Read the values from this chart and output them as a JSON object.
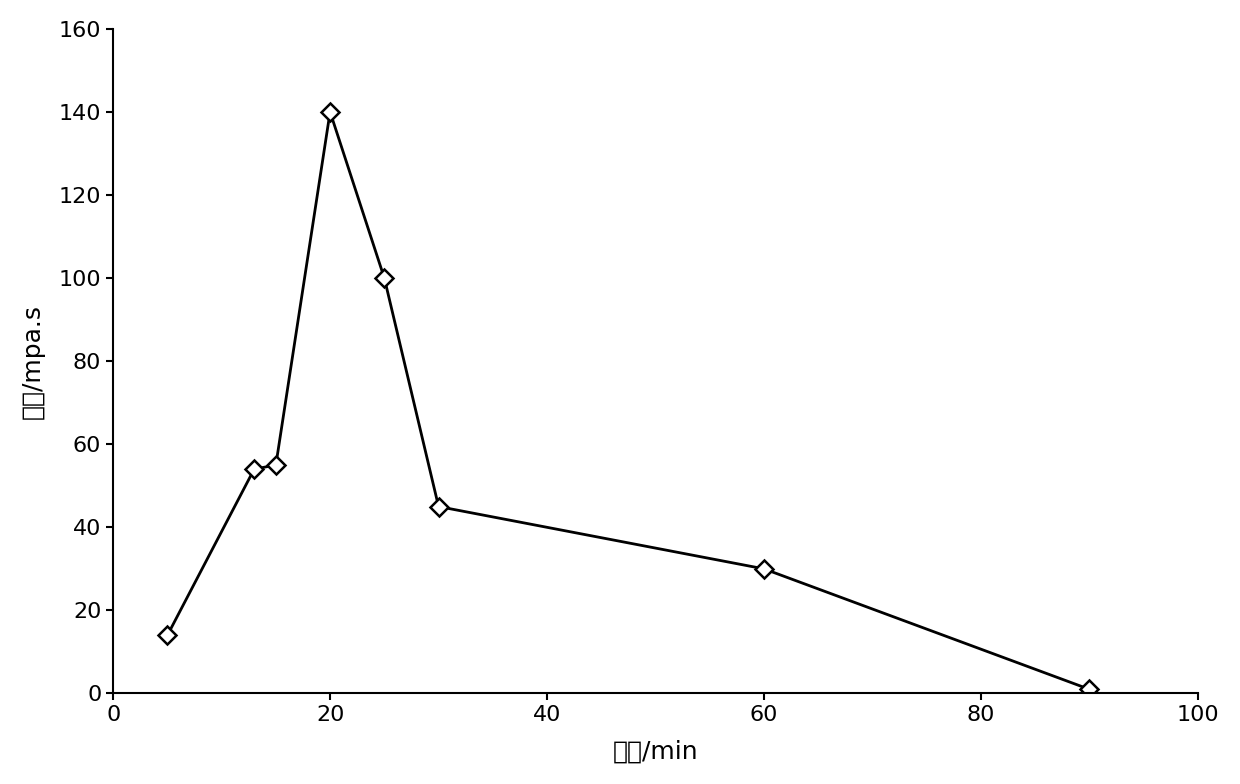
{
  "x": [
    5,
    13,
    15,
    20,
    25,
    30,
    60,
    90
  ],
  "y": [
    14,
    54,
    55,
    140,
    100,
    45,
    30,
    1
  ],
  "xlabel": "时间/min",
  "ylabel": "黏度/mpa.s",
  "xlim": [
    0,
    100
  ],
  "ylim": [
    0,
    160
  ],
  "xticks": [
    0,
    20,
    40,
    60,
    80,
    100
  ],
  "yticks": [
    0,
    20,
    40,
    60,
    80,
    100,
    120,
    140,
    160
  ],
  "line_color": "#000000",
  "marker": "D",
  "marker_size": 9,
  "marker_facecolor": "white",
  "marker_edgecolor": "#000000",
  "line_width": 2.0,
  "background_color": "#ffffff",
  "xlabel_fontsize": 18,
  "ylabel_fontsize": 18,
  "tick_fontsize": 16
}
